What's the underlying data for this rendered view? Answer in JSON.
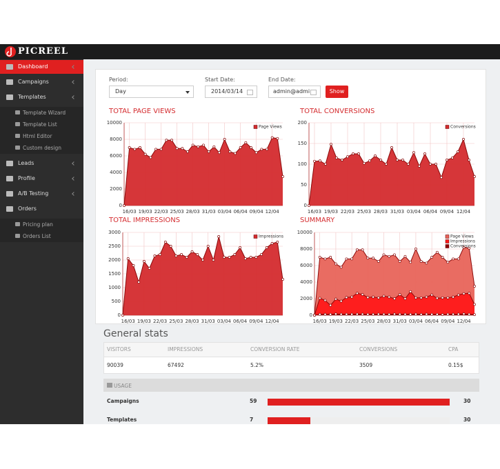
{
  "header": {
    "logo": "PICREEL"
  },
  "sidebar": {
    "items": [
      {
        "label": "Dashboard"
      },
      {
        "label": "Campaigns"
      },
      {
        "label": "Templates",
        "children": [
          {
            "label": "Template Wizard"
          },
          {
            "label": "Template List"
          },
          {
            "label": "Html Editor"
          },
          {
            "label": "Custom design"
          }
        ]
      },
      {
        "label": "Leads"
      },
      {
        "label": "Profile"
      },
      {
        "label": "A/B Testing"
      },
      {
        "label": "Orders",
        "children": [
          {
            "label": "Pricing plan"
          },
          {
            "label": "Orders List"
          }
        ]
      }
    ]
  },
  "filters": {
    "period_label": "Period:",
    "period": "Day",
    "start_label": "Start Date:",
    "start": "2014/03/14",
    "end_label": "End Date:",
    "end": "admin@admi",
    "button": "Show"
  },
  "chart_data": [
    {
      "type": "area",
      "title": "TOTAL PAGE VIEWS",
      "categories": [
        null,
        "16/03",
        null,
        null,
        "19/03",
        null,
        null,
        "22/03",
        null,
        null,
        "25/03",
        null,
        null,
        "28/03",
        null,
        null,
        "31/03",
        null,
        null,
        "03/04",
        null,
        null,
        "06/04",
        null,
        null,
        "09/04",
        null,
        null,
        "12/04",
        null,
        null
      ],
      "series": [
        {
          "name": "Page Views",
          "color": "#d42b2e",
          "values": [
            0,
            7000,
            6800,
            7000,
            6200,
            5800,
            6800,
            6800,
            7900,
            7900,
            6900,
            6900,
            6500,
            7300,
            7100,
            7300,
            6500,
            7100,
            6400,
            8000,
            6500,
            6300,
            7000,
            7600,
            7000,
            6400,
            6800,
            6800,
            8200,
            8100,
            3500
          ]
        }
      ],
      "ylim": [
        0,
        10000
      ],
      "yticks": [
        0,
        2000,
        4000,
        6000,
        8000,
        10000
      ],
      "grid": true,
      "legend": "upper right"
    },
    {
      "type": "area",
      "title": "TOTAL CONVERSIONS",
      "categories": [
        null,
        "16/03",
        null,
        null,
        "19/03",
        null,
        null,
        "22/03",
        null,
        null,
        "25/03",
        null,
        null,
        "28/03",
        null,
        null,
        "31/03",
        null,
        null,
        "03/04",
        null,
        null,
        "06/04",
        null,
        null,
        "09/04",
        null,
        null,
        "12/04",
        null,
        null
      ],
      "series": [
        {
          "name": "Conversions",
          "color": "#d42b2e",
          "values": [
            0,
            107,
            108,
            100,
            148,
            115,
            110,
            118,
            125,
            125,
            102,
            108,
            120,
            110,
            100,
            140,
            110,
            110,
            100,
            128,
            95,
            125,
            100,
            100,
            68,
            110,
            115,
            130,
            160,
            110,
            70
          ]
        }
      ],
      "ylim": [
        0,
        200
      ],
      "yticks": [
        0,
        50,
        100,
        150,
        200
      ],
      "grid": true,
      "legend": "upper right"
    },
    {
      "type": "area",
      "title": "TOTAL IMPRESSIONS",
      "categories": [
        null,
        "16/03",
        null,
        null,
        "19/03",
        null,
        null,
        "22/03",
        null,
        null,
        "25/03",
        null,
        null,
        "28/03",
        null,
        null,
        "31/03",
        null,
        null,
        "03/04",
        null,
        null,
        "06/04",
        null,
        null,
        "09/04",
        null,
        null,
        "12/04",
        null,
        null
      ],
      "series": [
        {
          "name": "Impressions",
          "color": "#d42b2e",
          "values": [
            0,
            2050,
            1800,
            1200,
            1950,
            1700,
            2150,
            2200,
            2650,
            2500,
            2150,
            2200,
            2100,
            2300,
            2200,
            2000,
            2500,
            2000,
            2850,
            2100,
            2100,
            2200,
            2450,
            2050,
            2100,
            2100,
            2200,
            2450,
            2600,
            2650,
            1300
          ]
        }
      ],
      "ylim": [
        0,
        3000
      ],
      "yticks": [
        0,
        500,
        1000,
        1500,
        2000,
        2500,
        3000
      ],
      "grid": true,
      "legend": "upper right"
    },
    {
      "type": "area",
      "title": "SUMMARY",
      "categories": [
        null,
        "16/03",
        null,
        null,
        "19/03",
        null,
        null,
        "22/03",
        null,
        null,
        "25/03",
        null,
        null,
        "28/03",
        null,
        null,
        "31/03",
        null,
        null,
        "03/04",
        null,
        null,
        "06/04",
        null,
        null,
        "09/04",
        null,
        null,
        "12/04",
        null,
        null
      ],
      "series": [
        {
          "name": "Page Views",
          "color": "#e8645a",
          "values": [
            0,
            7000,
            6800,
            7000,
            6200,
            5800,
            6800,
            6800,
            7900,
            7900,
            6900,
            6900,
            6500,
            7300,
            7100,
            7300,
            6500,
            7100,
            6400,
            8000,
            6500,
            6300,
            7000,
            7600,
            7000,
            6400,
            6800,
            6800,
            8200,
            8100,
            3500
          ]
        },
        {
          "name": "Impressions",
          "color": "#ff1a1a",
          "values": [
            0,
            2050,
            1800,
            1200,
            1950,
            1700,
            2150,
            2200,
            2650,
            2500,
            2150,
            2200,
            2100,
            2300,
            2200,
            2000,
            2500,
            2000,
            2850,
            2100,
            2100,
            2200,
            2450,
            2050,
            2100,
            2100,
            2200,
            2450,
            2600,
            2650,
            1300
          ]
        },
        {
          "name": "Conversions",
          "color": "#8b0000",
          "values": [
            0,
            107,
            108,
            100,
            148,
            115,
            110,
            118,
            125,
            125,
            102,
            108,
            120,
            110,
            100,
            140,
            110,
            110,
            100,
            128,
            95,
            125,
            100,
            100,
            68,
            110,
            115,
            130,
            160,
            110,
            70
          ]
        }
      ],
      "ylim": [
        0,
        10000
      ],
      "yticks": [
        0,
        2000,
        4000,
        6000,
        8000,
        10000
      ],
      "grid": true,
      "legend": "upper right"
    }
  ],
  "stats": {
    "title": "General stats",
    "columns": [
      "VISITORS",
      "IMPRESSIONS",
      "CONVERSION RATE",
      "CONVERSIONS",
      "CPA"
    ],
    "rows": [
      [
        90039,
        67492,
        "5.2%",
        3509,
        "0.15$"
      ]
    ]
  },
  "usage": {
    "title": "USAGE",
    "rows": [
      {
        "name": "Campaigns",
        "used": 59,
        "limit": 30
      },
      {
        "name": "Templates",
        "used": 7,
        "limit": 30
      }
    ]
  }
}
